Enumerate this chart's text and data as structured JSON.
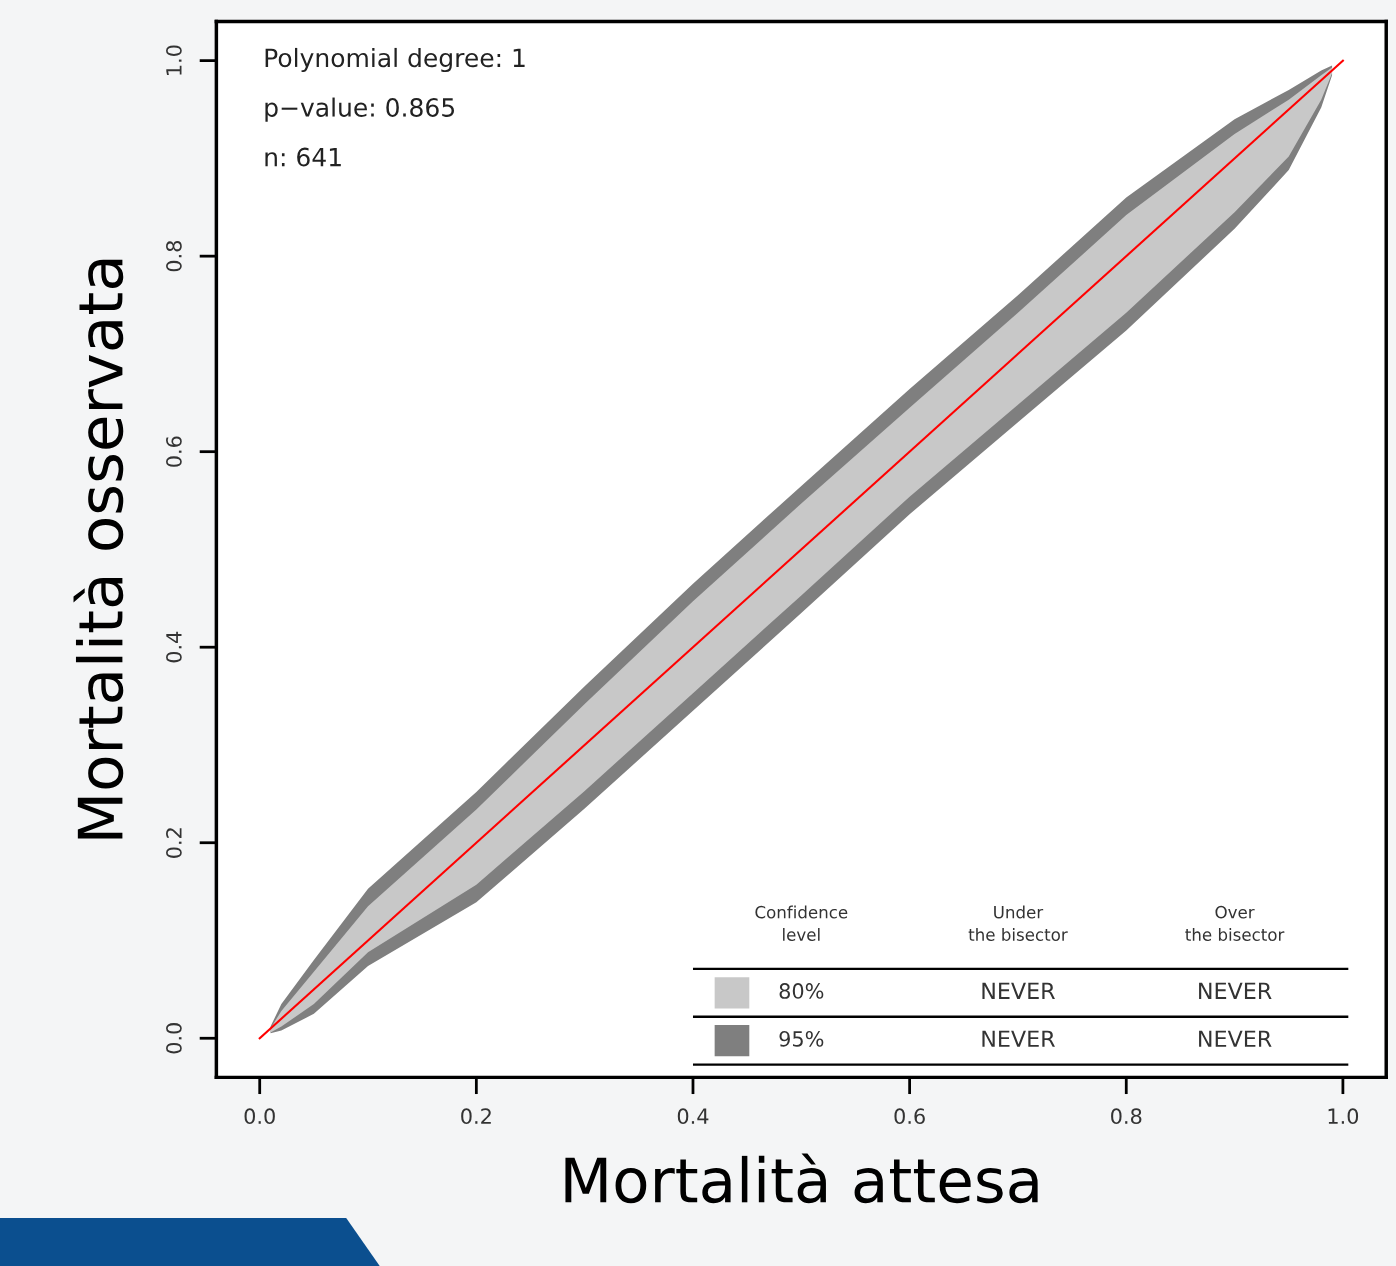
{
  "chart_data": {
    "type": "line",
    "xlabel": "Mortalità attesa",
    "ylabel": "Mortalità osservata",
    "xlim": [
      -0.04,
      1.04
    ],
    "ylim": [
      -0.04,
      1.04
    ],
    "xticks": [
      {
        "value": 0,
        "label": "0.0"
      },
      0.2,
      0.4,
      0.6,
      0.8,
      {
        "value": 1,
        "label": "1.0"
      }
    ],
    "yticks": [
      {
        "value": 0,
        "label": "0.0"
      },
      0.2,
      0.4,
      0.6,
      0.8,
      {
        "value": 1,
        "label": "1.0"
      }
    ],
    "grid": false,
    "legend": "bottom right",
    "legend_title": "Confidence\nlevel",
    "series": [
      {
        "name": "95%",
        "type": "line",
        "color": "#7f7f7f",
        "x": [
          0.01,
          0.02,
          0.05,
          0.1,
          0.2,
          0.3,
          0.4,
          0.5,
          0.6,
          0.7,
          0.8,
          0.9,
          0.95,
          0.98,
          0.99
        ],
        "values": [
          null,
          null,
          null,
          null,
          null,
          null,
          null,
          null,
          null,
          null,
          null,
          null,
          null,
          null,
          null
        ],
        "lower": [
          0.005,
          0.008,
          0.025,
          0.074,
          0.139,
          0.235,
          0.335,
          0.435,
          0.536,
          0.63,
          0.724,
          0.828,
          0.888,
          0.952,
          0.985
        ],
        "upper": [
          0.012,
          0.035,
          0.08,
          0.153,
          0.252,
          0.36,
          0.465,
          0.565,
          0.664,
          0.76,
          0.86,
          0.94,
          0.97,
          0.99,
          0.995
        ]
      },
      {
        "name": "80%",
        "type": "line",
        "color": "#c8c8c8",
        "x": [
          0.01,
          0.02,
          0.05,
          0.1,
          0.2,
          0.3,
          0.4,
          0.5,
          0.6,
          0.7,
          0.8,
          0.9,
          0.95,
          0.98,
          0.99
        ],
        "values": [
          null,
          null,
          null,
          null,
          null,
          null,
          null,
          null,
          null,
          null,
          null,
          null,
          null,
          null,
          null
        ],
        "lower": [
          0.006,
          0.012,
          0.035,
          0.088,
          0.157,
          0.253,
          0.353,
          0.453,
          0.554,
          0.648,
          0.742,
          0.845,
          0.902,
          0.96,
          0.987
        ],
        "upper": [
          0.01,
          0.028,
          0.068,
          0.135,
          0.234,
          0.342,
          0.447,
          0.547,
          0.645,
          0.742,
          0.842,
          0.925,
          0.96,
          0.985,
          0.993
        ]
      },
      {
        "color": "#ff0000",
        "x": [
          0,
          1
        ],
        "values": [
          0,
          1
        ]
      }
    ],
    "annotations": [
      "Polynomial degree: 1",
      "p−value: 0.865",
      "n: 641",
      "Under\nthe bisector",
      "Over\nthe bisector",
      "NEVER",
      "NEVER",
      "NEVER",
      "NEVER"
    ]
  }
}
